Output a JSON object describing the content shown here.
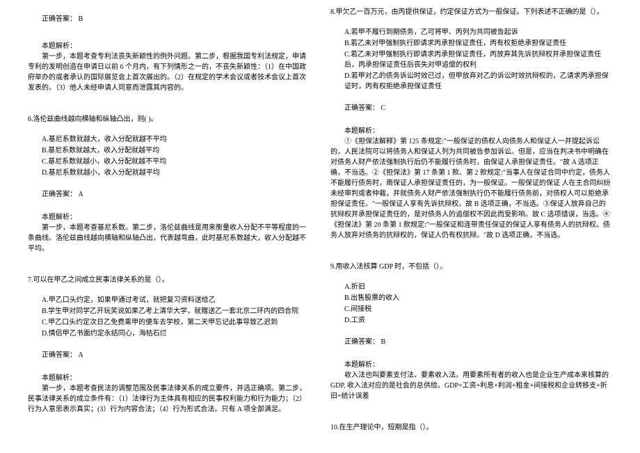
{
  "left": {
    "ans1": "正确答案： B",
    "exp1_label": "本题解析：",
    "exp1_p1": "第一步，本题考查专利法丧失新颖性的例外问题。第二步，根据我国专利法规定，申请专利的发明创造在申请日以前 6 个月内，有下列情形之一的，不丧失新颖性：（1）在中国政府举办的或者承认的国际展览会上首次展出的。（2）在规定的学术会议或者技术会议上首次发表的。（3）他人未经申请人同意而泄露其内容的。",
    "q6": "6.洛伦兹曲线越向横轴和纵轴凸出，则(   )。",
    "q6a": "A.基尼系数就越大，收入分配就越不平均",
    "q6b": "B.基尼系数就越大，收入分配就越平均",
    "q6c": "C.基尼系数就越小，收入分配就越不平均",
    "q6d": "D.基尼系数就越小，收入分配就越平均",
    "ans6": "正确答案： A",
    "exp6_label": "本题解析：",
    "exp6_p1": "第一步，本题考查基尼系数。第二步，洛伦兹曲线是用来衡量收入分配不平等程度的一条曲线。洛伦兹曲线越向横轴和纵轴凸出，代表越弯曲，此时基尼系数越大，收入分配越不平均。",
    "q7": "7.可以在甲乙之间成立民事法律关系的是（）。",
    "q7a": "A.甲乙口头约定，如果甲通过考试，就把复习资料送给乙",
    "q7b": "B.学生甲对同学乙开玩笑说如果乙考上清华大学，就赠送乙一套北京二环内的四合院",
    "q7c": "C.甲乙口头约定次日乙免费乘甲的便车去学校，第二天甲忘记此事导致乙迟到",
    "q7d": "D.情侣甲乙书面约定永结同心，海枯石烂",
    "ans7": "正确答案： A",
    "exp7_label": "本题解析：",
    "exp7_p1": "第一步，本题考查民法的调整范围及民事法律关系的成立要件，并选正确项。第二步，民事法律关系的成立条件有：（1）法律行为主体具有相应的民事权利能力和行为能力；（2）行为人意思表示真实；(3）行为内容合法；（4）行为形式合法。只有 A 项全部满足。"
  },
  "right": {
    "q8": "8.甲欠乙一百万元，由丙提供保证，约定保证方式为一般保证。下列表述不正确的是（）。",
    "q8a": "A.若甲不履行到期债务，乙可将甲、丙列为共同被告起诉",
    "q8b": "B.若乙未对甲强制执行即请求丙承担保证责任，丙有权拒绝承担保证责任",
    "q8c": "C.若乙未对甲强制执行即请求丙承担保证责任，丙放弃其先诉抗辩权并承担保证责任后，丙承担保证责任后丧失对甲追偿的权利",
    "q8d": "D.若甲对乙的债务诉讼时效已过，但甲放弃对乙的诉讼时效抗辩权的，乙请求丙承担保证时，丙有权拒绝承担保证责任",
    "ans8": "正确答案： C",
    "exp8_label": "本题解析：",
    "exp8_p1": "①《担保法解释》第 125 条规定:\"一般保证的债权人向债务人和保证人一并提起诉讼的，人民法院可以将债务人和保证人列为共同被告参加诉讼。但是，应当在判决书中明确在对债务人财产依法强制执行后仍不能履行债务时，由保证人承担保证责任。\"故 A 选项正确，不当选。②《担保法》第 17 条第 1 款、第 2 款规定:\"当事人在保证合同中约定，债务人不能履行债务时，南保证人承担保证责任的，为一般保证。一般保证的保证 人在主合同纠纷未经审判或者仲裁，并就债务人财产依法强制执行仍不能履行债务前，对债权人可以拒绝承担保证责任。\"一般保证人享有先诉抗辩权。故 B 选项正确，不当选。③保证人放弃自己的抗辩权并承担保证责任的，是对债务人的追偿权不因此而受影响。故 C 选项错误，当选。④《担保法》第 20 条第 1 款规定:\"一般保证和连带责任保证的保证人享有债务人的抗辩权。债务人放弃对债务的抗辩权的，保证人仍有权抗辩。\"故 D 选项正确，不当选。",
    "q9": "9.用收入法核算 GDP 时，不包括（）。",
    "q9a": "A.折旧",
    "q9b": "B.出售股票的收入",
    "q9c": "C.间接税",
    "q9d": "D.工资",
    "ans9": "正确答案： B",
    "exp9_label": "本题解析：",
    "exp9_p1": "收入法也叫要素支付法、要素收入法。用要素所有者的收入也是企业生产成本来核算的 GDP, 收入法对应的是社会的总供给。GDP=工资+利息+利润+租金+间接税和企业转移支+折旧+统计误差",
    "q10": "10.在生产理论中，短期是指（）。"
  }
}
